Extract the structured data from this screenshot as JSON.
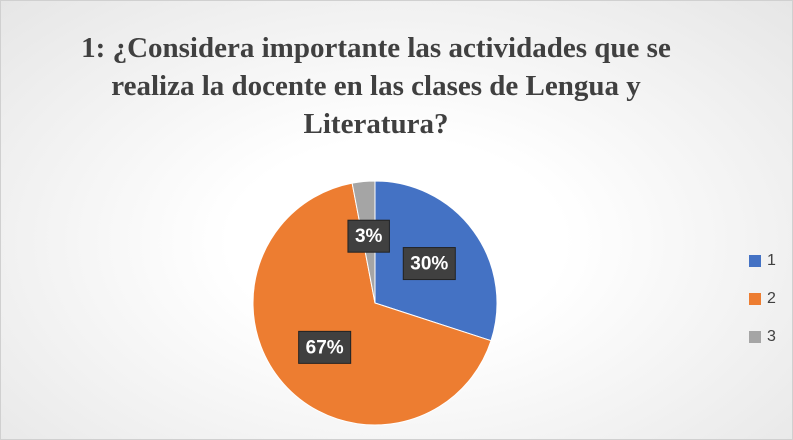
{
  "chart_data": {
    "type": "pie",
    "title": "1: ¿Considera importante  las actividades que se realiza la docente en las clases de Lengua y Literatura?",
    "categories": [
      "1",
      "2",
      "3"
    ],
    "values": [
      30,
      67,
      3
    ],
    "value_labels": [
      "30%",
      "67%",
      "3%"
    ],
    "colors": [
      "#4472c4",
      "#ed7d31",
      "#a5a5a5"
    ],
    "legend": "right"
  }
}
